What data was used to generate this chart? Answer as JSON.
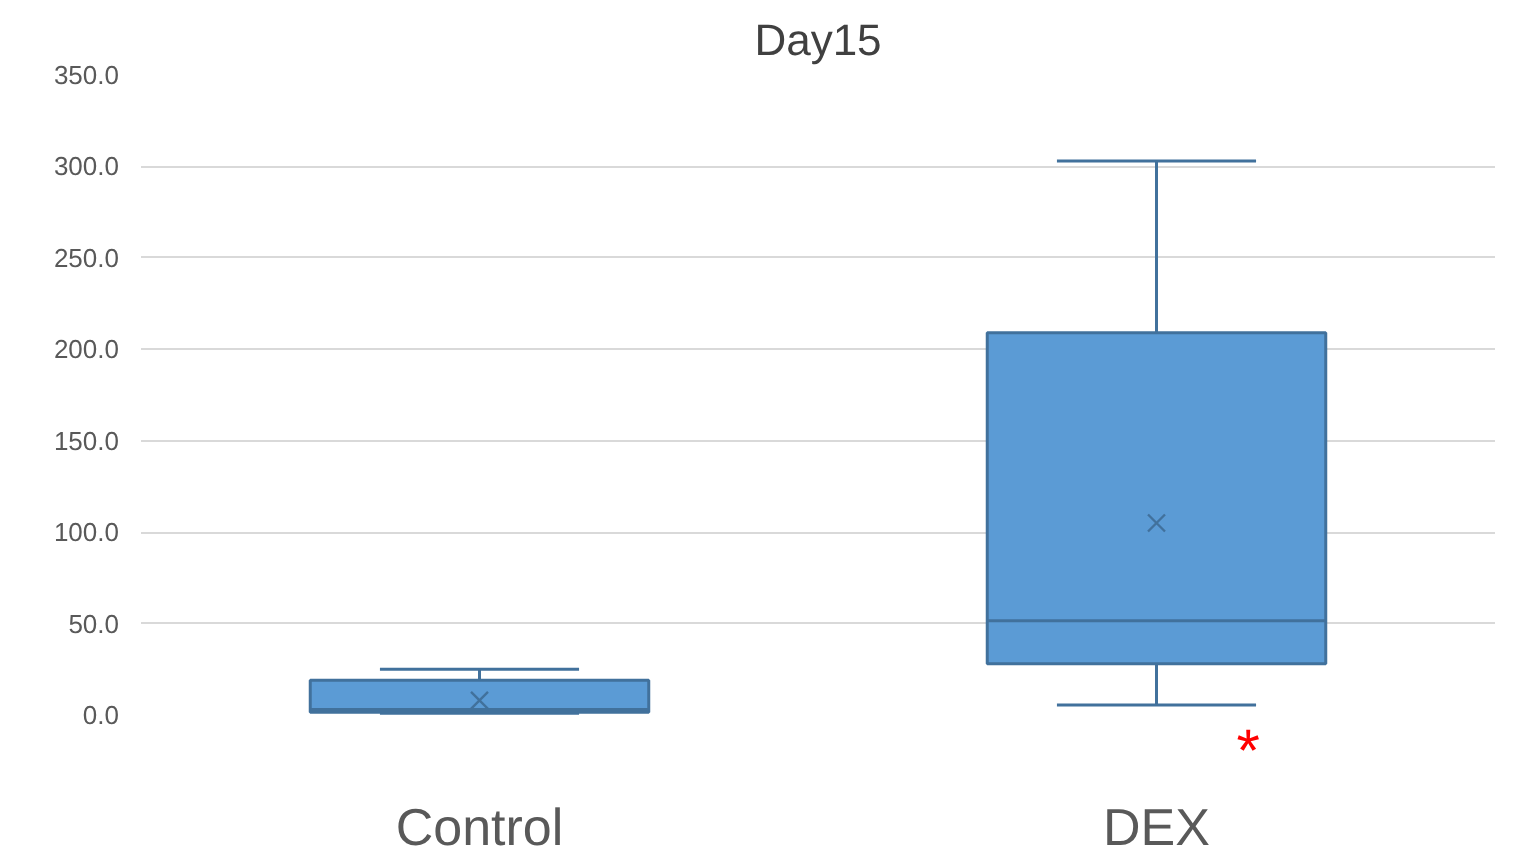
{
  "chart_data": {
    "type": "box",
    "title": "Day15",
    "categories": [
      "Control",
      "DEX"
    ],
    "series": [
      {
        "color": "#5b9bd5",
        "boxes": [
          {
            "low": 1,
            "q1": 1.5,
            "median": 3,
            "q3": 19,
            "high": 25,
            "mean": 8
          },
          {
            "low": 5.5,
            "q1": 28,
            "median": 51.5,
            "q3": 209,
            "high": 303,
            "mean": 105
          }
        ]
      }
    ],
    "ylim": [
      0,
      350
    ],
    "yticks": [
      {
        "value": 0,
        "label": "0.0"
      },
      {
        "value": 50,
        "label": "50.0"
      },
      {
        "value": 100,
        "label": "100.0"
      },
      {
        "value": 150,
        "label": "150.0"
      },
      {
        "value": 200,
        "label": "200.0"
      },
      {
        "value": 250,
        "label": "250.0"
      },
      {
        "value": 300,
        "label": "300.0"
      },
      {
        "value": 350,
        "label": "350.0"
      }
    ],
    "grid": "y",
    "annotations": [
      "*"
    ]
  }
}
